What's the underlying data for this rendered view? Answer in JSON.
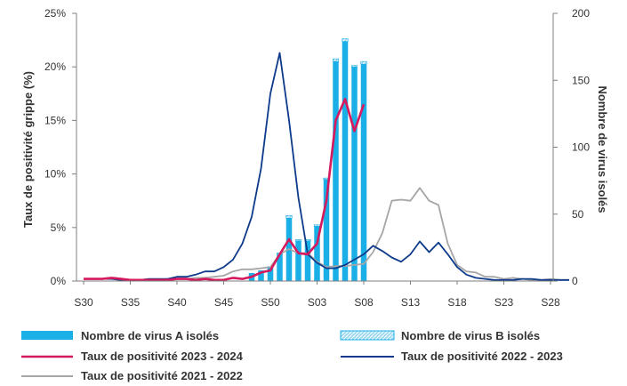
{
  "chart_data": {
    "type": "bar",
    "xlabel": "",
    "ylabel": "Taux de positivité grippe (%)",
    "y2label": "Nombre de virus isolés",
    "ylim": [
      0,
      25
    ],
    "y2lim": [
      0,
      200
    ],
    "yticks": [
      "0%",
      "5%",
      "10%",
      "15%",
      "20%",
      "25%"
    ],
    "y2ticks": [
      "0",
      "50",
      "100",
      "150",
      "200"
    ],
    "grid": false,
    "legend_position": "bottom",
    "x_tick_labels": [
      "S30",
      "S35",
      "S40",
      "S45",
      "S50",
      "S03",
      "S08",
      "S13",
      "S18",
      "S23",
      "S28"
    ],
    "x_tick_index": [
      0,
      5,
      10,
      15,
      20,
      25,
      30,
      35,
      40,
      45,
      50
    ],
    "bar_start_index": 18,
    "series": [
      {
        "name": "Nombre de virus A isolés",
        "kind": "bar",
        "axis": "right",
        "color": "#1AAFE6",
        "values": [
          6,
          8,
          11,
          20,
          47,
          30,
          30,
          41,
          76,
          164,
          179,
          160,
          162
        ]
      },
      {
        "name": "Nombre de virus B isolés",
        "kind": "bar",
        "axis": "right",
        "color": "#9FD8F2",
        "pattern": true,
        "values": [
          0,
          0,
          0,
          1,
          2,
          1,
          1,
          1,
          1,
          2,
          2,
          1,
          2
        ]
      },
      {
        "name": "Taux de positivité 2023 - 2024",
        "kind": "line",
        "axis": "left",
        "color": "#D6185C",
        "values": [
          0.2,
          0.2,
          0.2,
          0.3,
          0.2,
          0.1,
          0.1,
          0.1,
          0.1,
          0.1,
          0.2,
          0.2,
          0.1,
          0.2,
          0.1,
          0.1,
          0.3,
          0.2,
          0.4,
          0.8,
          1.0,
          2.5,
          3.9,
          2.6,
          2.5,
          3.5,
          7.5,
          15.0,
          17.0,
          14.0,
          16.5
        ]
      },
      {
        "name": "Taux de positivité 2022 - 2023",
        "kind": "line",
        "axis": "left",
        "color": "#0D3A8A",
        "values": [
          0.2,
          0.2,
          0.2,
          0.2,
          0.1,
          0.1,
          0.1,
          0.2,
          0.2,
          0.2,
          0.4,
          0.4,
          0.6,
          0.9,
          0.9,
          1.3,
          2.0,
          3.5,
          6.0,
          10.5,
          17.5,
          21.3,
          15.0,
          7.8,
          2.5,
          1.7,
          1.2,
          1.2,
          1.5,
          2.0,
          2.5,
          3.3,
          2.8,
          2.2,
          1.8,
          2.5,
          3.7,
          2.7,
          3.6,
          2.5,
          1.3,
          0.6,
          0.3,
          0.2,
          0.1,
          0.1,
          0.1,
          0.2,
          0.2,
          0.1,
          0.1,
          0.1,
          0.1
        ]
      },
      {
        "name": "Taux de positivité 2021 - 2022",
        "kind": "line",
        "axis": "left",
        "color": "#A6A6A6",
        "values": [
          0.2,
          0.2,
          0.2,
          0.2,
          0.2,
          0.1,
          0.1,
          0.1,
          0.1,
          0.2,
          0.2,
          0.2,
          0.3,
          0.3,
          0.4,
          0.5,
          0.9,
          1.1,
          1.1,
          1.2,
          1.3,
          2.5,
          3.0,
          2.6,
          2.6,
          1.8,
          1.3,
          1.4,
          1.4,
          1.5,
          1.6,
          2.7,
          4.5,
          7.5,
          7.6,
          7.5,
          8.7,
          7.5,
          7.1,
          3.5,
          1.5,
          0.9,
          0.8,
          0.4,
          0.4,
          0.2,
          0.3,
          0.2,
          0.1,
          0.1,
          0.2,
          0.1,
          0.1
        ]
      }
    ]
  }
}
